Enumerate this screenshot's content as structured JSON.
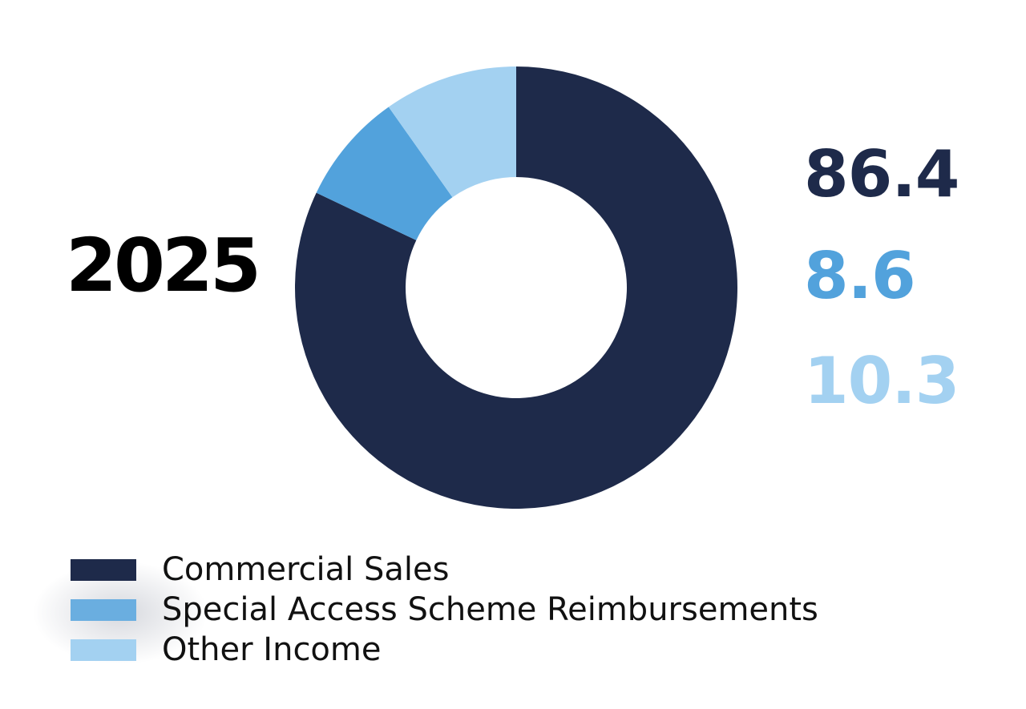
{
  "chart_data": {
    "type": "pie",
    "title": "",
    "year_label": "2025",
    "categories": [
      "Commercial Sales",
      "Special Access Scheme Reimbursements",
      "Other Income"
    ],
    "values": [
      86.4,
      8.6,
      10.3
    ],
    "value_labels": [
      "86.4",
      "8.6",
      "10.3"
    ],
    "colors": [
      "#1e2a4a",
      "#52a2dc",
      "#a3d1f1"
    ],
    "donut": true,
    "start_angle_deg": 0,
    "direction": "clockwise",
    "legend_position": "bottom-left"
  },
  "legend": {
    "items": [
      {
        "label": "Commercial Sales",
        "color": "#1e2a4a"
      },
      {
        "label": "Special Access Scheme Reimbursements",
        "color": "#6aaee0"
      },
      {
        "label": "Other Income",
        "color": "#a3d1f1"
      }
    ]
  }
}
